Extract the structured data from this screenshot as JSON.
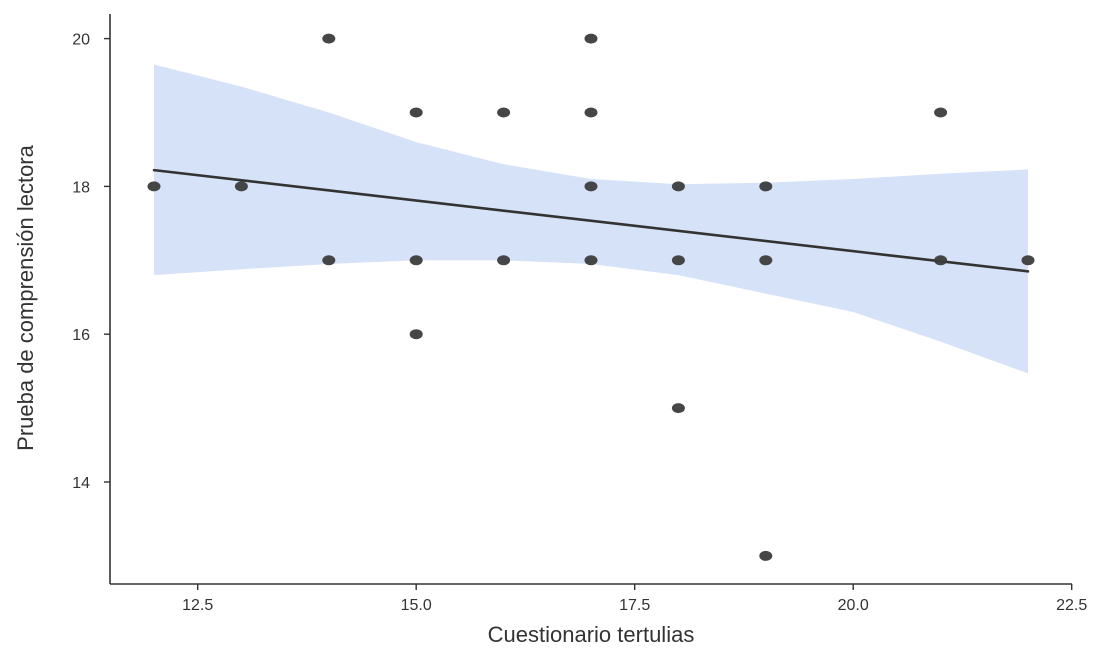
{
  "chart_data": {
    "type": "scatter",
    "xlabel": "Cuestionario tertulias",
    "ylabel": "Prueba de comprensión lectora",
    "xlim": [
      11.5,
      22.5
    ],
    "ylim": [
      12.6,
      20.4
    ],
    "x_ticks": [
      12.5,
      15.0,
      17.5,
      20.0,
      22.5
    ],
    "x_tick_labels": [
      "12.5",
      "15.0",
      "17.5",
      "20.0",
      "22.5"
    ],
    "y_ticks": [
      14,
      16,
      18,
      20
    ],
    "y_tick_labels": [
      "14",
      "16",
      "18",
      "20"
    ],
    "grid": false,
    "points": [
      {
        "x": 12,
        "y": 18
      },
      {
        "x": 13,
        "y": 18
      },
      {
        "x": 14,
        "y": 20
      },
      {
        "x": 14,
        "y": 17
      },
      {
        "x": 15,
        "y": 19
      },
      {
        "x": 15,
        "y": 17
      },
      {
        "x": 15,
        "y": 16
      },
      {
        "x": 16,
        "y": 19
      },
      {
        "x": 16,
        "y": 17
      },
      {
        "x": 17,
        "y": 20
      },
      {
        "x": 17,
        "y": 19
      },
      {
        "x": 17,
        "y": 18
      },
      {
        "x": 17,
        "y": 17
      },
      {
        "x": 18,
        "y": 18
      },
      {
        "x": 18,
        "y": 17
      },
      {
        "x": 18,
        "y": 15
      },
      {
        "x": 19,
        "y": 18
      },
      {
        "x": 19,
        "y": 17
      },
      {
        "x": 19,
        "y": 13
      },
      {
        "x": 21,
        "y": 19
      },
      {
        "x": 21,
        "y": 17
      },
      {
        "x": 22,
        "y": 17
      }
    ],
    "regression_line": {
      "x": [
        12,
        22
      ],
      "y": [
        18.22,
        16.85
      ]
    },
    "confidence_band": [
      {
        "x": 12,
        "lower": 16.8,
        "upper": 19.65
      },
      {
        "x": 13,
        "lower": 16.88,
        "upper": 19.35
      },
      {
        "x": 14,
        "lower": 16.95,
        "upper": 19.0
      },
      {
        "x": 15,
        "lower": 17.0,
        "upper": 18.6
      },
      {
        "x": 16,
        "lower": 17.0,
        "upper": 18.3
      },
      {
        "x": 17,
        "lower": 16.95,
        "upper": 18.1
      },
      {
        "x": 18,
        "lower": 16.8,
        "upper": 18.03
      },
      {
        "x": 19,
        "lower": 16.55,
        "upper": 18.05
      },
      {
        "x": 20,
        "lower": 16.3,
        "upper": 18.1
      },
      {
        "x": 21,
        "lower": 15.9,
        "upper": 18.17
      },
      {
        "x": 22,
        "lower": 15.47,
        "upper": 18.23
      }
    ],
    "colors": {
      "points": "#3c3c3c",
      "line": "#333333",
      "band": "#c8d8f5",
      "axis": "#333333"
    }
  }
}
